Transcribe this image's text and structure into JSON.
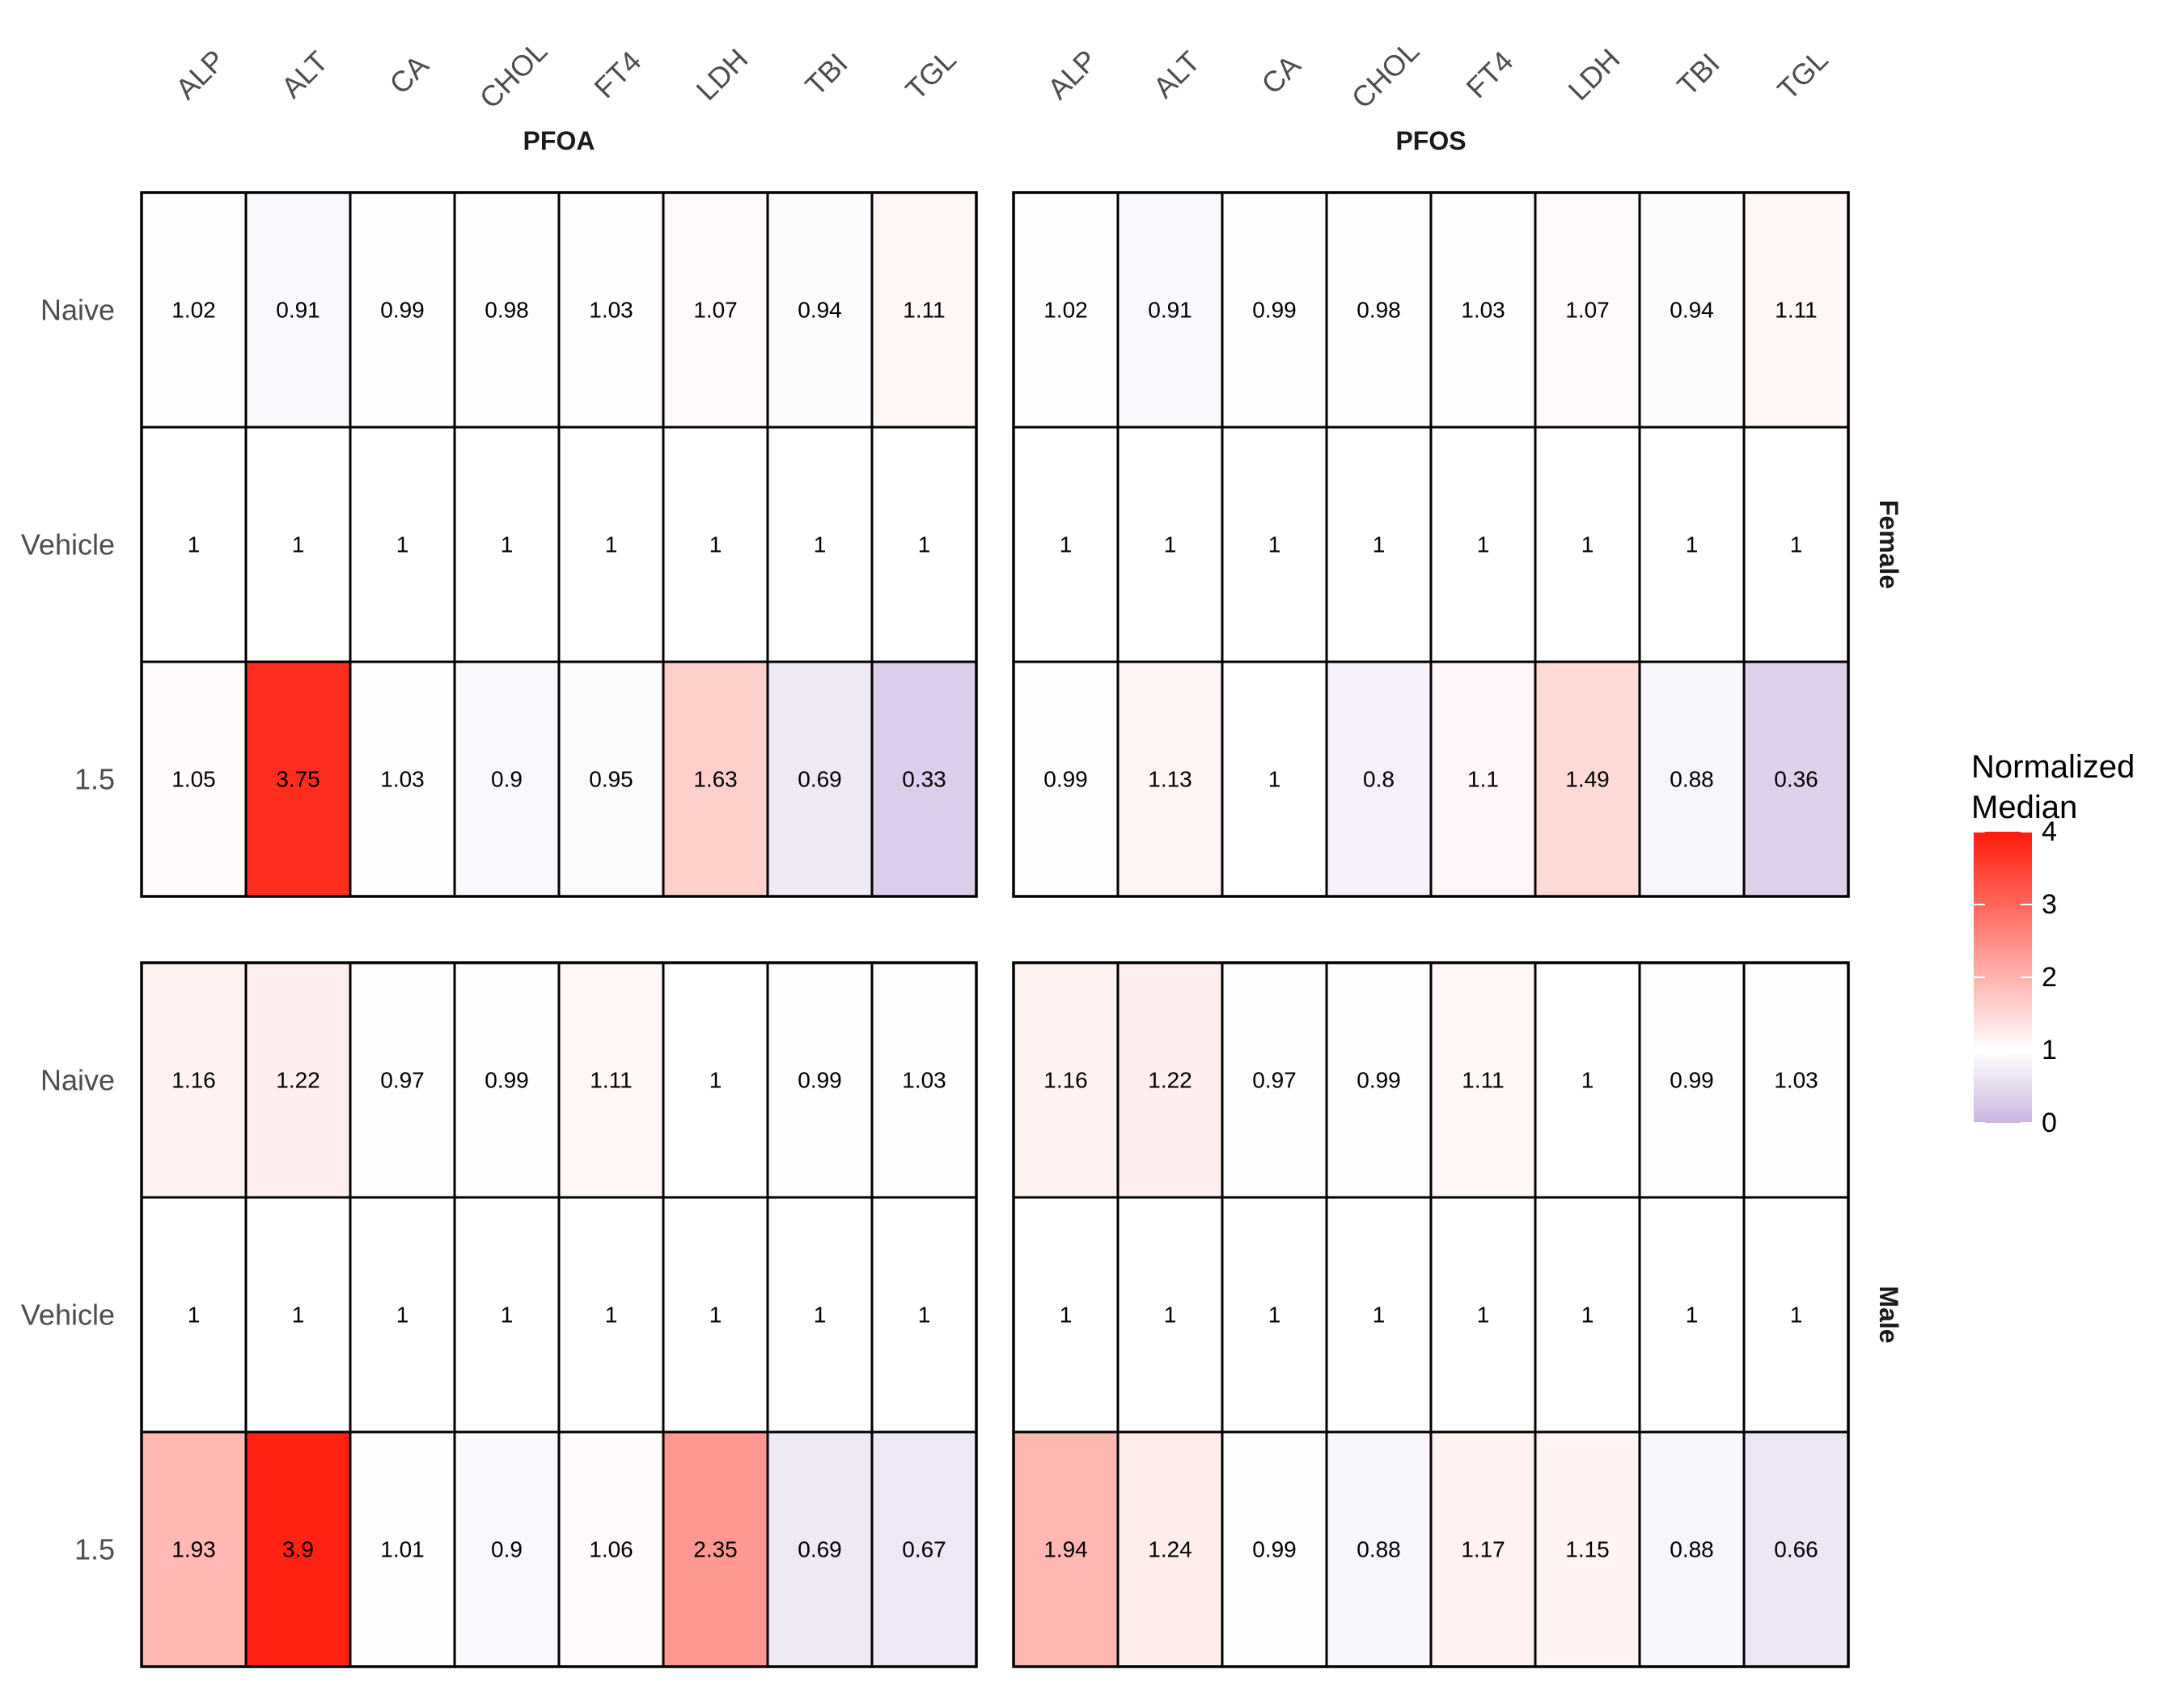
{
  "chart_data": {
    "type": "heatmap",
    "columns": [
      "ALP",
      "ALT",
      "CA",
      "CHOL",
      "FT4",
      "LDH",
      "TBI",
      "TGL"
    ],
    "rows": [
      "Naive",
      "Vehicle",
      "1.5"
    ],
    "facet_cols": [
      "PFOA",
      "PFOS"
    ],
    "facet_rows": [
      "Female",
      "Male"
    ],
    "legend": {
      "title_lines": [
        "Normalized",
        "Median"
      ],
      "ticks": [
        0,
        1,
        2,
        3,
        4
      ],
      "tick_labels": [
        "0",
        "1",
        "2",
        "3",
        "4"
      ],
      "range": [
        0,
        4
      ],
      "low_color": "#cbb5e0",
      "mid_color": "#ffffff",
      "high_color": "#ff1a0a",
      "midpoint": 1,
      "placement": "right"
    },
    "panels": [
      {
        "facet_col": "PFOA",
        "facet_row": "Female",
        "values": [
          [
            1.02,
            0.91,
            0.99,
            0.98,
            1.03,
            1.07,
            0.94,
            1.11
          ],
          [
            1,
            1,
            1,
            1,
            1,
            1,
            1,
            1
          ],
          [
            1.05,
            3.75,
            1.03,
            0.9,
            0.95,
            1.63,
            0.69,
            0.33
          ]
        ],
        "labels": [
          [
            "1.02",
            "0.91",
            "0.99",
            "0.98",
            "1.03",
            "1.07",
            "0.94",
            "1.11"
          ],
          [
            "1",
            "1",
            "1",
            "1",
            "1",
            "1",
            "1",
            "1"
          ],
          [
            "1.05",
            "3.75",
            "1.03",
            "0.9",
            "0.95",
            "1.63",
            "0.69",
            "0.33"
          ]
        ]
      },
      {
        "facet_col": "PFOS",
        "facet_row": "Female",
        "values": [
          [
            1.02,
            0.91,
            0.99,
            0.98,
            1.03,
            1.07,
            0.94,
            1.11
          ],
          [
            1,
            1,
            1,
            1,
            1,
            1,
            1,
            1
          ],
          [
            0.99,
            1.13,
            1,
            0.8,
            1.1,
            1.49,
            0.88,
            0.36
          ]
        ],
        "labels": [
          [
            "1.02",
            "0.91",
            "0.99",
            "0.98",
            "1.03",
            "1.07",
            "0.94",
            "1.11"
          ],
          [
            "1",
            "1",
            "1",
            "1",
            "1",
            "1",
            "1",
            "1"
          ],
          [
            "0.99",
            "1.13",
            "1",
            "0.8",
            "1.1",
            "1.49",
            "0.88",
            "0.36"
          ]
        ]
      },
      {
        "facet_col": "PFOA",
        "facet_row": "Male",
        "values": [
          [
            1.16,
            1.22,
            0.97,
            0.99,
            1.11,
            1,
            0.99,
            1.03
          ],
          [
            1,
            1,
            1,
            1,
            1,
            1,
            1,
            1
          ],
          [
            1.93,
            3.9,
            1.01,
            0.9,
            1.06,
            2.35,
            0.69,
            0.67
          ]
        ],
        "labels": [
          [
            "1.16",
            "1.22",
            "0.97",
            "0.99",
            "1.11",
            "1",
            "0.99",
            "1.03"
          ],
          [
            "1",
            "1",
            "1",
            "1",
            "1",
            "1",
            "1",
            "1"
          ],
          [
            "1.93",
            "3.9",
            "1.01",
            "0.9",
            "1.06",
            "2.35",
            "0.69",
            "0.67"
          ]
        ]
      },
      {
        "facet_col": "PFOS",
        "facet_row": "Male",
        "values": [
          [
            1.16,
            1.22,
            0.97,
            0.99,
            1.11,
            1,
            0.99,
            1.03
          ],
          [
            1,
            1,
            1,
            1,
            1,
            1,
            1,
            1
          ],
          [
            1.94,
            1.24,
            0.99,
            0.88,
            1.17,
            1.15,
            0.88,
            0.66
          ]
        ],
        "labels": [
          [
            "1.16",
            "1.22",
            "0.97",
            "0.99",
            "1.11",
            "1",
            "0.99",
            "1.03"
          ],
          [
            "1",
            "1",
            "1",
            "1",
            "1",
            "1",
            "1",
            "1"
          ],
          [
            "1.94",
            "1.24",
            "0.99",
            "0.88",
            "1.17",
            "1.15",
            "0.88",
            "0.66"
          ]
        ]
      }
    ]
  }
}
